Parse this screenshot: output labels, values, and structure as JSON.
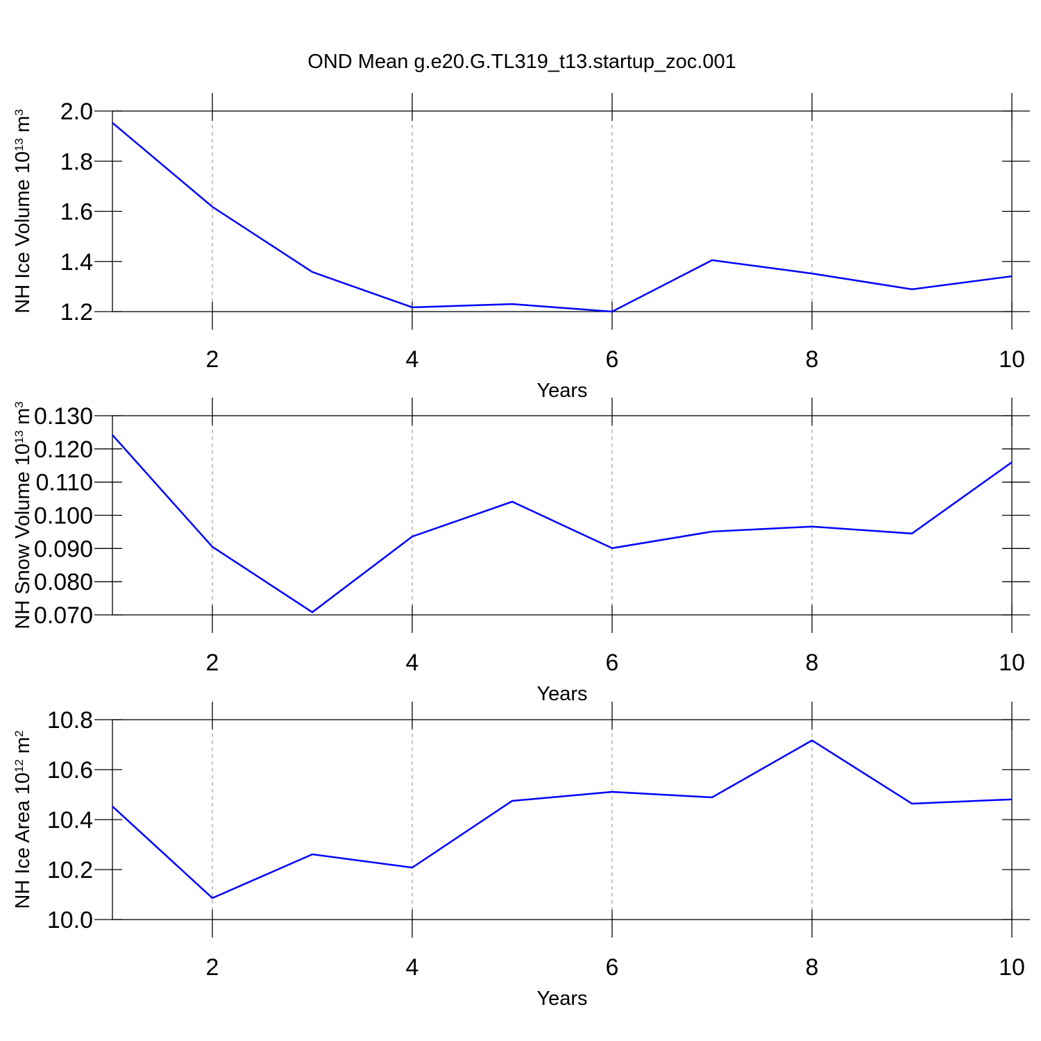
{
  "title": "OND Mean g.e20.G.TL319_t13.startup_zoc.001",
  "chart_data": [
    {
      "type": "line",
      "ylabel": [
        "NH Ice Volume 10",
        "13",
        " m",
        "3"
      ],
      "xlabel": "Years",
      "x": [
        1,
        2,
        3,
        4,
        5,
        6,
        7,
        8,
        9,
        10
      ],
      "series": [
        {
          "color": "#0000ff",
          "values": [
            1.953,
            1.618,
            1.358,
            1.217,
            1.23,
            1.2,
            1.405,
            1.352,
            1.289,
            1.341
          ]
        }
      ],
      "xlim": [
        1,
        10
      ],
      "xticks": [
        2,
        4,
        6,
        8,
        10
      ],
      "ylim": [
        1.2,
        2.0
      ],
      "yticks": [
        1.2,
        1.4,
        1.6,
        1.8,
        {
          "value": 2,
          "label": "2.0"
        }
      ],
      "grid": true
    },
    {
      "type": "line",
      "ylabel": [
        "NH Snow Volume 10",
        "13",
        " m",
        "3"
      ],
      "xlabel": "Years",
      "x": [
        1,
        2,
        3,
        4,
        5,
        6,
        7,
        8,
        9,
        10
      ],
      "series": [
        {
          "color": "#0000ff",
          "values": [
            0.1242,
            0.0905,
            0.0708,
            0.0936,
            0.1041,
            0.0901,
            0.0951,
            0.0966,
            0.0945,
            0.116
          ]
        }
      ],
      "xlim": [
        1,
        10
      ],
      "xticks": [
        2,
        4,
        6,
        8,
        10
      ],
      "ylim": [
        0.07,
        0.13
      ],
      "yticks": [
        {
          "value": 0.07,
          "label": "0.070"
        },
        {
          "value": 0.08,
          "label": "0.080"
        },
        {
          "value": 0.09,
          "label": "0.090"
        },
        {
          "value": 0.1,
          "label": "0.100"
        },
        {
          "value": 0.11,
          "label": "0.110"
        },
        {
          "value": 0.12,
          "label": "0.120"
        },
        {
          "value": 0.13,
          "label": "0.130"
        }
      ],
      "grid": true
    },
    {
      "type": "line",
      "ylabel": [
        "NH Ice Area 10",
        "12",
        " m",
        "2"
      ],
      "xlabel": "Years",
      "x": [
        1,
        2,
        3,
        4,
        5,
        6,
        7,
        8,
        9,
        10
      ],
      "series": [
        {
          "color": "#0000ff",
          "values": [
            10.453,
            10.086,
            10.261,
            10.208,
            10.475,
            10.511,
            10.489,
            10.717,
            10.464,
            10.481
          ]
        }
      ],
      "xlim": [
        1,
        10
      ],
      "xticks": [
        2,
        4,
        6,
        8,
        10
      ],
      "ylim": [
        10,
        10.8
      ],
      "yticks": [
        {
          "value": 10,
          "label": "10.0"
        },
        10.2,
        10.4,
        10.6,
        10.8
      ],
      "grid": true
    }
  ]
}
